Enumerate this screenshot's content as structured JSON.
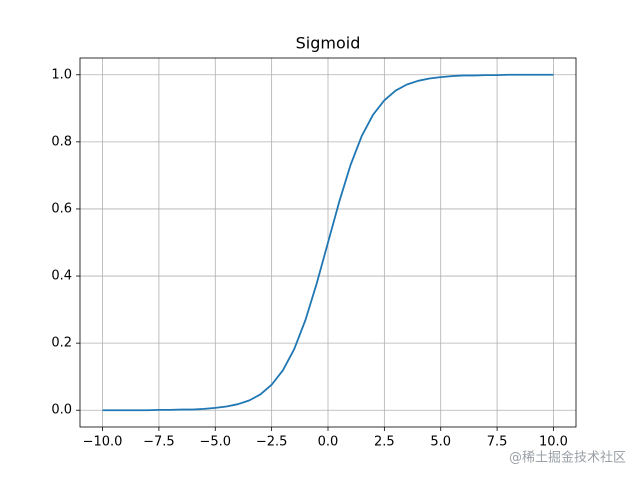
{
  "chart_data": {
    "type": "line",
    "title": "Sigmoid",
    "x": [
      -10,
      -9.5,
      -9,
      -8.5,
      -8,
      -7.5,
      -7,
      -6.5,
      -6,
      -5.5,
      -5,
      -4.5,
      -4,
      -3.5,
      -3,
      -2.5,
      -2,
      -1.5,
      -1,
      -0.5,
      0,
      0.5,
      1,
      1.5,
      2,
      2.5,
      3,
      3.5,
      4,
      4.5,
      5,
      5.5,
      6,
      6.5,
      7,
      7.5,
      8,
      8.5,
      9,
      9.5,
      10
    ],
    "values": [
      0.0,
      0.0,
      0.0,
      0.0,
      0.0,
      0.001,
      0.001,
      0.002,
      0.002,
      0.004,
      0.007,
      0.011,
      0.018,
      0.029,
      0.047,
      0.076,
      0.119,
      0.182,
      0.269,
      0.378,
      0.5,
      0.622,
      0.731,
      0.818,
      0.881,
      0.924,
      0.953,
      0.971,
      0.982,
      0.989,
      0.993,
      0.996,
      0.998,
      0.998,
      0.999,
      0.999,
      1.0,
      1.0,
      1.0,
      1.0,
      1.0
    ],
    "color": "#1f77b4",
    "xlim": [
      -11,
      11
    ],
    "xticks": [
      {
        "value": -10,
        "label": "−10.0"
      },
      {
        "value": -7.5,
        "label": "−7.5"
      },
      {
        "value": -5,
        "label": "−5.0"
      },
      {
        "value": -2.5,
        "label": "−2.5"
      },
      {
        "value": 0,
        "label": "0.0"
      },
      2.5,
      {
        "value": 5,
        "label": "5.0"
      },
      7.5,
      {
        "value": 10,
        "label": "10.0"
      }
    ],
    "ylim": [
      -0.05,
      1.05
    ],
    "yticks": [
      {
        "value": 0,
        "label": "0.0"
      },
      0.2,
      0.4,
      0.6,
      0.8,
      {
        "value": 1,
        "label": "1.0"
      }
    ],
    "grid": true,
    "watermark": "@稀土掘金技术社区"
  }
}
